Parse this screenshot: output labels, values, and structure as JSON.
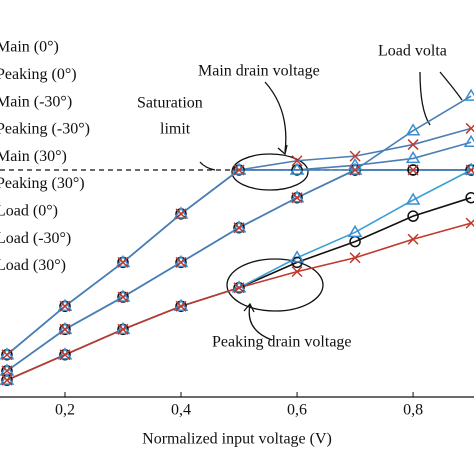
{
  "chart_data": {
    "type": "line",
    "xlabel": "Normalized input voltage (V)",
    "x": [
      0.1,
      0.2,
      0.3,
      0.4,
      0.5,
      0.6,
      0.7,
      0.8,
      0.9
    ],
    "xlim": [
      0.088,
      0.905
    ],
    "xticks": [
      {
        "value": 0.2,
        "label": "0,2"
      },
      {
        "value": 0.4,
        "label": "0,4"
      },
      {
        "value": 0.6,
        "label": "0,6"
      },
      {
        "value": 0.8,
        "label": "0,8"
      }
    ],
    "ylim": [
      0.017,
      1.736
    ],
    "saturation": 1.0,
    "annotations": [
      "Main drain voltage",
      "Load volta",
      "Saturation",
      "limit",
      "Peaking drain voltage"
    ],
    "series": [
      {
        "name": "Main (0°)",
        "color": "#4a7fb5",
        "marker": "circle",
        "values": [
          0.2,
          0.41,
          0.6,
          0.81,
          1.0,
          1.0,
          1.0,
          1.0,
          1.0
        ]
      },
      {
        "name": "Peaking (0°)",
        "color": "#4a7fb5",
        "marker": "circle",
        "values": [
          0.13,
          0.31,
          0.45,
          0.6,
          0.75,
          0.88,
          1.0,
          1.0,
          1.0
        ]
      },
      {
        "name": "Main (-30°)",
        "color": "#4a7fb5",
        "marker": "triangle",
        "values": [
          0.2,
          0.41,
          0.6,
          0.81,
          1.0,
          1.0,
          1.02,
          1.05,
          1.12
        ]
      },
      {
        "name": "Peaking (-30°)",
        "color": "#4a7fb5",
        "marker": "triangle",
        "values": [
          0.13,
          0.31,
          0.45,
          0.6,
          0.75,
          0.88,
          1.0,
          1.17,
          1.32
        ]
      },
      {
        "name": "Main (30°)",
        "color": "#4a7fb5",
        "marker": "x",
        "values": [
          0.2,
          0.41,
          0.6,
          0.81,
          1.0,
          1.04,
          1.06,
          1.11,
          1.18
        ]
      },
      {
        "name": "Peaking (30°)",
        "color": "#4a7fb5",
        "marker": "x",
        "values": [
          0.13,
          0.31,
          0.45,
          0.6,
          0.75,
          0.88,
          1.0,
          1.0,
          1.0
        ]
      },
      {
        "name": "Load (0°)",
        "color": "#111111",
        "marker": "circle",
        "values": [
          0.09,
          0.2,
          0.31,
          0.41,
          0.49,
          0.6,
          0.69,
          0.8,
          0.88
        ]
      },
      {
        "name": "Load (-30°)",
        "color": "#3aa0d8",
        "marker": "triangle",
        "values": [
          0.09,
          0.2,
          0.31,
          0.41,
          0.49,
          0.62,
          0.73,
          0.87,
          1.0
        ]
      },
      {
        "name": "Load (30°)",
        "color": "#c0392b",
        "marker": "x",
        "values": [
          0.09,
          0.2,
          0.31,
          0.41,
          0.49,
          0.56,
          0.62,
          0.7,
          0.77
        ]
      }
    ]
  }
}
